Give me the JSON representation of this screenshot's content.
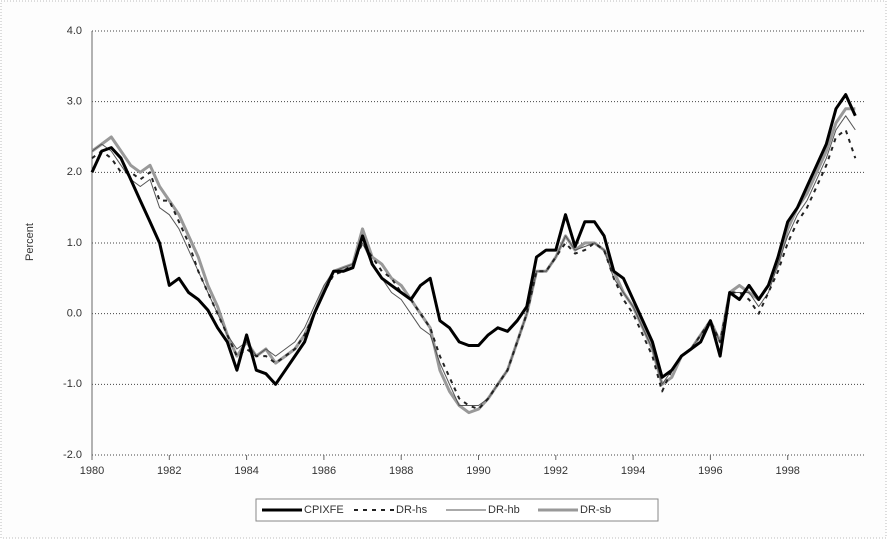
{
  "chart_data": {
    "type": "line",
    "y_label": "Percent",
    "x": [
      1980,
      1980.25,
      1980.5,
      1980.75,
      1981,
      1981.25,
      1981.5,
      1981.75,
      1982,
      1982.25,
      1982.5,
      1982.75,
      1983,
      1983.25,
      1983.5,
      1983.75,
      1984,
      1984.25,
      1984.5,
      1984.75,
      1985,
      1985.25,
      1985.5,
      1985.75,
      1986,
      1986.25,
      1986.5,
      1986.75,
      1987,
      1987.25,
      1987.5,
      1987.75,
      1988,
      1988.25,
      1988.5,
      1988.75,
      1989,
      1989.25,
      1989.5,
      1989.75,
      1990,
      1990.25,
      1990.5,
      1990.75,
      1991,
      1991.25,
      1991.5,
      1991.75,
      1992,
      1992.25,
      1992.5,
      1992.75,
      1993,
      1993.25,
      1993.5,
      1993.75,
      1994,
      1994.25,
      1994.5,
      1994.75,
      1995,
      1995.25,
      1995.5,
      1995.75,
      1996,
      1996.25,
      1996.5,
      1996.75,
      1997,
      1997.25,
      1997.5,
      1997.75,
      1998,
      1998.25,
      1998.5,
      1998.75,
      1999,
      1999.25,
      1999.5,
      1999.75
    ],
    "series": [
      {
        "name": "CPIXFE",
        "color": "#000000",
        "width": 3,
        "dash": "none",
        "values": [
          2.0,
          2.3,
          2.35,
          2.2,
          1.9,
          1.6,
          1.3,
          1.0,
          0.4,
          0.5,
          0.3,
          0.2,
          0.05,
          -0.2,
          -0.4,
          -0.8,
          -0.3,
          -0.8,
          -0.85,
          -1.0,
          -0.8,
          -0.6,
          -0.4,
          0.0,
          0.3,
          0.6,
          0.6,
          0.65,
          1.1,
          0.7,
          0.5,
          0.4,
          0.3,
          0.2,
          0.4,
          0.5,
          -0.1,
          -0.2,
          -0.4,
          -0.45,
          -0.45,
          -0.3,
          -0.2,
          -0.25,
          -0.1,
          0.1,
          0.8,
          0.9,
          0.9,
          1.4,
          0.95,
          1.3,
          1.3,
          1.1,
          0.6,
          0.5,
          0.2,
          -0.1,
          -0.4,
          -0.9,
          -0.8,
          -0.6,
          -0.5,
          -0.4,
          -0.1,
          -0.6,
          0.3,
          0.2,
          0.4,
          0.2,
          0.4,
          0.8,
          1.3,
          1.5,
          1.8,
          2.1,
          2.4,
          2.9,
          3.1,
          2.8
        ]
      },
      {
        "name": "DR-hs",
        "color": "#222222",
        "width": 2,
        "dash": "4 5",
        "values": [
          2.2,
          2.3,
          2.2,
          2.0,
          2.0,
          1.9,
          2.0,
          1.6,
          1.6,
          1.3,
          1.0,
          0.6,
          0.3,
          0.0,
          -0.3,
          -0.6,
          -0.5,
          -0.6,
          -0.6,
          -0.7,
          -0.6,
          -0.5,
          -0.3,
          0.0,
          0.3,
          0.55,
          0.6,
          0.7,
          1.0,
          0.8,
          0.6,
          0.5,
          0.3,
          0.2,
          0.0,
          -0.2,
          -0.6,
          -0.9,
          -1.2,
          -1.3,
          -1.35,
          -1.2,
          -1.0,
          -0.8,
          -0.4,
          0.0,
          0.6,
          0.6,
          0.8,
          1.0,
          0.85,
          0.9,
          1.0,
          0.9,
          0.5,
          0.2,
          0.0,
          -0.3,
          -0.6,
          -1.1,
          -0.8,
          -0.6,
          -0.5,
          -0.3,
          -0.1,
          -0.4,
          0.3,
          0.3,
          0.2,
          0.0,
          0.3,
          0.6,
          1.0,
          1.3,
          1.5,
          1.8,
          2.1,
          2.5,
          2.6,
          2.2
        ]
      },
      {
        "name": "DR-hb",
        "color": "#555555",
        "width": 1,
        "dash": "none",
        "values": [
          2.3,
          2.4,
          2.3,
          2.1,
          1.9,
          1.8,
          1.9,
          1.5,
          1.4,
          1.2,
          0.9,
          0.6,
          0.3,
          0.0,
          -0.3,
          -0.5,
          -0.4,
          -0.6,
          -0.5,
          -0.6,
          -0.5,
          -0.4,
          -0.2,
          0.1,
          0.4,
          0.6,
          0.65,
          0.7,
          1.0,
          0.7,
          0.5,
          0.3,
          0.2,
          0.0,
          -0.2,
          -0.3,
          -0.7,
          -1.0,
          -1.3,
          -1.3,
          -1.3,
          -1.2,
          -1.0,
          -0.8,
          -0.4,
          0.0,
          0.6,
          0.6,
          0.8,
          1.1,
          0.9,
          0.95,
          1.0,
          0.9,
          0.5,
          0.3,
          0.1,
          -0.2,
          -0.5,
          -1.0,
          -0.8,
          -0.6,
          -0.5,
          -0.3,
          -0.1,
          -0.4,
          0.3,
          0.3,
          0.3,
          0.1,
          0.3,
          0.7,
          1.1,
          1.4,
          1.6,
          1.9,
          2.2,
          2.6,
          2.8,
          2.6
        ]
      },
      {
        "name": "DR-sb",
        "color": "#999999",
        "width": 3,
        "dash": "none",
        "values": [
          2.3,
          2.4,
          2.5,
          2.3,
          2.1,
          2.0,
          2.1,
          1.8,
          1.6,
          1.4,
          1.1,
          0.8,
          0.4,
          0.1,
          -0.3,
          -0.6,
          -0.4,
          -0.6,
          -0.5,
          -0.7,
          -0.6,
          -0.5,
          -0.3,
          0.0,
          0.35,
          0.6,
          0.65,
          0.7,
          1.2,
          0.8,
          0.7,
          0.5,
          0.4,
          0.2,
          0.0,
          -0.2,
          -0.8,
          -1.1,
          -1.3,
          -1.4,
          -1.35,
          -1.2,
          -1.0,
          -0.8,
          -0.4,
          0.0,
          0.6,
          0.6,
          0.8,
          1.1,
          0.9,
          1.0,
          1.0,
          0.9,
          0.6,
          0.3,
          0.1,
          -0.2,
          -0.5,
          -1.0,
          -0.9,
          -0.6,
          -0.5,
          -0.3,
          -0.1,
          -0.4,
          0.3,
          0.4,
          0.3,
          0.2,
          0.4,
          0.7,
          1.2,
          1.5,
          1.7,
          2.0,
          2.3,
          2.7,
          2.9,
          2.9
        ]
      }
    ],
    "xlim": [
      1980,
      2000
    ],
    "xticks": [
      1980,
      1982,
      1984,
      1986,
      1988,
      1990,
      1992,
      1994,
      1996,
      1998
    ],
    "ylim": [
      -2,
      4
    ],
    "yticks": [
      {
        "value": -2,
        "label": "-2.0"
      },
      {
        "value": -1,
        "label": "-1.0"
      },
      {
        "value": 0,
        "label": "0.0"
      },
      {
        "value": 1,
        "label": "1.0"
      },
      {
        "value": 2,
        "label": "2.0"
      },
      {
        "value": 3,
        "label": "3.0"
      },
      {
        "value": 4,
        "label": "4.0"
      }
    ],
    "grid": true,
    "legend": "bottom"
  }
}
